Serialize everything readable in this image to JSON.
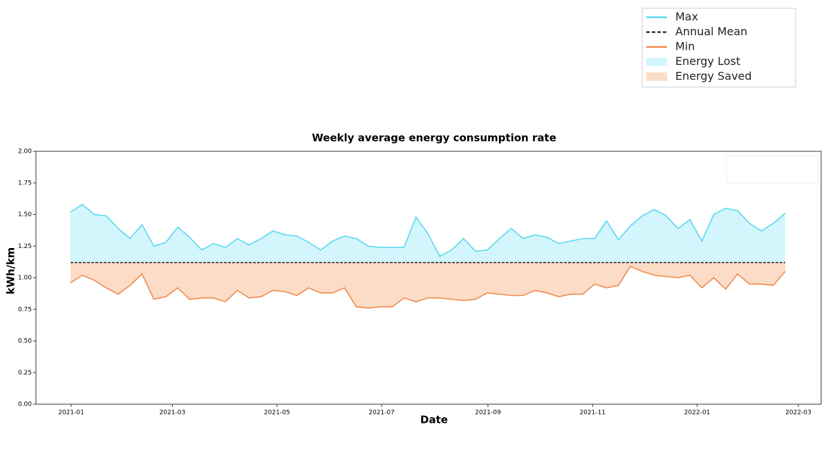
{
  "chart_data": {
    "type": "line",
    "title": "Weekly average energy consumption rate",
    "x_label": "Date",
    "y_label": "kWh/km",
    "xticks": [
      "2021-01",
      "2021-03",
      "2021-05",
      "2021-07",
      "2021-09",
      "2021-11",
      "2022-01",
      "2022-03"
    ],
    "ylim": [
      0,
      2
    ],
    "yticks": [
      {
        "value": 0,
        "label": "0.00"
      },
      {
        "value": 0.25,
        "label": "0.25"
      },
      {
        "value": 0.5,
        "label": "0.50"
      },
      {
        "value": 0.75,
        "label": "0.75"
      },
      {
        "value": 1,
        "label": "1.00"
      },
      {
        "value": 1.25,
        "label": "1.25"
      },
      {
        "value": 1.5,
        "label": "1.50"
      },
      {
        "value": 1.75,
        "label": "1.75"
      },
      {
        "value": 2,
        "label": "2.00"
      }
    ],
    "series": [
      {
        "name": "Max",
        "color": "#5ad8f0",
        "values": [
          1.52,
          1.58,
          1.5,
          1.49,
          1.39,
          1.31,
          1.42,
          1.25,
          1.28,
          1.4,
          1.32,
          1.22,
          1.27,
          1.24,
          1.31,
          1.26,
          1.31,
          1.37,
          1.34,
          1.33,
          1.28,
          1.22,
          1.29,
          1.33,
          1.31,
          1.25,
          1.24,
          1.24,
          1.24,
          1.48,
          1.35,
          1.17,
          1.22,
          1.31,
          1.21,
          1.22,
          1.31,
          1.39,
          1.31,
          1.34,
          1.32,
          1.27,
          1.29,
          1.31,
          1.31,
          1.45,
          1.3,
          1.41,
          1.49,
          1.54,
          1.49,
          1.39,
          1.46,
          1.29,
          1.5,
          1.55,
          1.53,
          1.43,
          1.37,
          1.43,
          1.51
        ]
      },
      {
        "name": "Min",
        "color": "#f08a4b",
        "values": [
          0.96,
          1.02,
          0.98,
          0.92,
          0.87,
          0.94,
          1.03,
          0.83,
          0.85,
          0.92,
          0.83,
          0.84,
          0.84,
          0.81,
          0.9,
          0.84,
          0.85,
          0.9,
          0.89,
          0.86,
          0.92,
          0.88,
          0.88,
          0.92,
          0.77,
          0.76,
          0.77,
          0.77,
          0.84,
          0.81,
          0.84,
          0.84,
          0.83,
          0.82,
          0.83,
          0.88,
          0.87,
          0.86,
          0.86,
          0.9,
          0.88,
          0.85,
          0.87,
          0.87,
          0.95,
          0.92,
          0.94,
          1.09,
          1.05,
          1.02,
          1.01,
          1.0,
          1.02,
          0.92,
          1.0,
          0.91,
          1.03,
          0.95,
          0.95,
          0.94,
          1.05
        ]
      }
    ],
    "annual_mean": {
      "name": "Annual Mean",
      "value": 1.12,
      "color": "#333333"
    },
    "areas": [
      {
        "name": "Energy Lost",
        "color": "#d3f5fc"
      },
      {
        "name": "Energy Saved",
        "color": "#fcdcc6"
      }
    ]
  }
}
